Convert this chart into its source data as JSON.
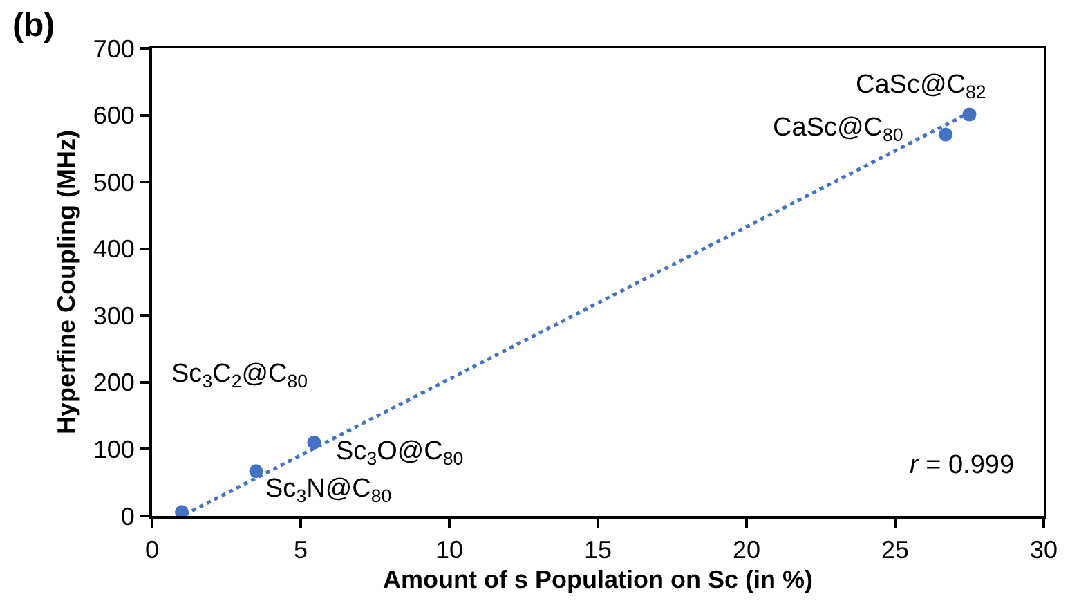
{
  "chart_data": {
    "type": "scatter",
    "xlabel": "Amount of s Population on Sc (in %)",
    "ylabel": "Hyperfine Coupling (MHz)",
    "series": [
      {
        "color": "#4472c4",
        "marker": "circle",
        "x": [
          1.0,
          3.5,
          5.45,
          26.7,
          27.5
        ],
        "values": [
          6,
          67,
          110,
          571,
          601
        ]
      },
      {
        "type": "line",
        "color": "#4472c4",
        "line_style": "dotted",
        "marker": "none",
        "x": [
          1.1,
          27.6
        ],
        "values": [
          2,
          606
        ]
      }
    ],
    "xlim": [
      0,
      30
    ],
    "xticks": [
      0,
      5,
      10,
      15,
      20,
      25,
      30
    ],
    "ylim": [
      0,
      700
    ],
    "yticks": [
      0,
      100,
      200,
      300,
      400,
      500,
      600,
      700
    ],
    "annotations": [
      "Sc$_{3}$C$_{2}$@C$_{80}$",
      {
        "text": "Sc$_{3}$N@C$_{80}$",
        "x": 3.5,
        "y": 67
      },
      {
        "text": "Sc$_{3}$O@C$_{80}$",
        "x": 5.45,
        "y": 110
      },
      {
        "text": "CaSc@C$_{80}$",
        "x": 26.7,
        "y": 571
      },
      {
        "text": "CaSc@C$_{82}$",
        "x": 27.5,
        "y": 601
      },
      "r = 0.999",
      "(b)"
    ]
  }
}
